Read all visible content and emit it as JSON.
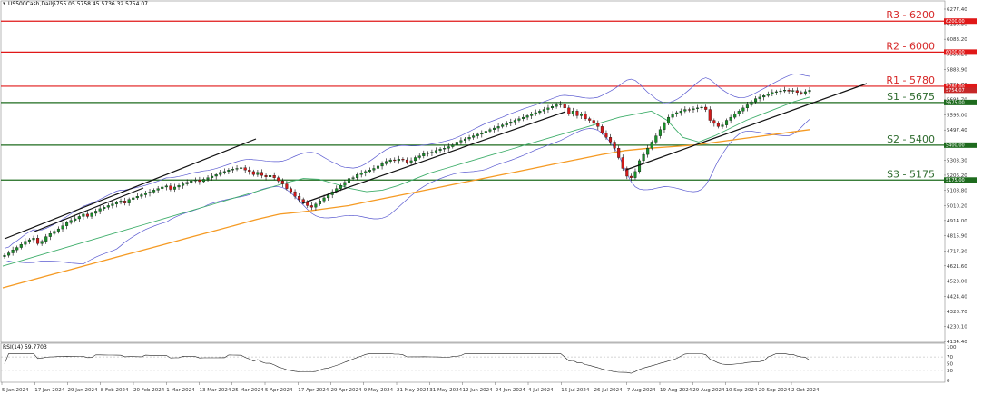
{
  "header": {
    "symbol_label": "US500Cash,Daily",
    "ohlc": "5755.05 5758.45 5736.32 5754.07"
  },
  "rsi_label": "RSI(14) 59.7703",
  "colors": {
    "resistance": "#e01818",
    "support": "#1e6b1e",
    "bullish_candle": "#1a8f2a",
    "bearish_candle": "#d11a1a",
    "ma_fast": "#3fae6b",
    "ma_slow": "#f59a23",
    "bollinger": "#5a5ad0",
    "trendline": "#111111",
    "rsi_line": "#222222"
  },
  "chart_data": [
    {
      "type": "candlestick",
      "title": "US500Cash,Daily",
      "x_labels": [
        "5 Jan 2024",
        "17 Jan 2024",
        "29 Jan 2024",
        "8 Feb 2024",
        "20 Feb 2024",
        "1 Mar 2024",
        "13 Mar 2024",
        "25 Mar 2024",
        "5 Apr 2024",
        "17 Apr 2024",
        "29 Apr 2024",
        "9 May 2024",
        "21 May 2024",
        "31 May 2024",
        "12 Jun 2024",
        "24 Jun 2024",
        "4 Jul 2024",
        "16 Jul 2024",
        "26 Jul 2024",
        "7 Aug 2024",
        "19 Aug 2024",
        "29 Aug 2024",
        "10 Sep 2024",
        "20 Sep 2024",
        "2 Oct 2024"
      ],
      "y_ticks": [
        "6277.40",
        "6180.80",
        "6083.20",
        "5986.20",
        "5888.90",
        "5791.70",
        "5694.70",
        "5596.00",
        "5497.40",
        "5400.00",
        "5303.30",
        "5206.20",
        "5108.80",
        "5010.20",
        "4914.00",
        "4815.90",
        "4717.30",
        "4621.60",
        "4523.00",
        "4424.40",
        "4328.70",
        "4230.10",
        "4134.40"
      ],
      "ylim": [
        4134.4,
        6277.4
      ],
      "levels": [
        {
          "label": "R3 - 6200",
          "value": 6200,
          "type": "resistance",
          "tag": "6200.00"
        },
        {
          "label": "R2 - 6000",
          "value": 6000,
          "type": "resistance",
          "tag": "6000.00"
        },
        {
          "label": "R1 - 5780",
          "value": 5780,
          "type": "resistance",
          "tag": "5780.00"
        },
        {
          "label": "S1 - 5675",
          "value": 5675,
          "type": "support",
          "tag": "5675.00"
        },
        {
          "label": "S2 - 5400",
          "value": 5400,
          "type": "support",
          "tag": "5400.00"
        },
        {
          "label": "S3 - 5175",
          "value": 5175,
          "type": "support",
          "tag": "5175.00"
        }
      ],
      "current_price": {
        "value": 5754.07,
        "tag": "5754.07"
      },
      "closes": [
        4690,
        4705,
        4725,
        4740,
        4760,
        4780,
        4790,
        4800,
        4765,
        4780,
        4810,
        4830,
        4845,
        4860,
        4880,
        4900,
        4915,
        4925,
        4940,
        4955,
        4940,
        4960,
        4975,
        4990,
        5000,
        5010,
        5020,
        5030,
        5040,
        5026,
        5050,
        5060,
        5070,
        5080,
        5090,
        5098,
        5110,
        5120,
        5130,
        5137,
        5115,
        5130,
        5140,
        5150,
        5160,
        5170,
        5175,
        5165,
        5180,
        5190,
        5200,
        5210,
        5225,
        5230,
        5240,
        5245,
        5250,
        5254,
        5240,
        5230,
        5210,
        5225,
        5205,
        5195,
        5205,
        5190,
        5170,
        5150,
        5120,
        5100,
        5070,
        5050,
        5030,
        5010,
        5000,
        5020,
        5040,
        5060,
        5080,
        5100,
        5120,
        5140,
        5160,
        5185,
        5190,
        5210,
        5220,
        5230,
        5240,
        5250,
        5265,
        5280,
        5295,
        5305,
        5300,
        5310,
        5305,
        5290,
        5300,
        5320,
        5330,
        5345,
        5350,
        5355,
        5365,
        5375,
        5380,
        5390,
        5400,
        5420,
        5430,
        5440,
        5450,
        5460,
        5470,
        5480,
        5490,
        5500,
        5510,
        5520,
        5530,
        5540,
        5550,
        5560,
        5570,
        5580,
        5590,
        5600,
        5610,
        5620,
        5630,
        5640,
        5650,
        5660,
        5665,
        5640,
        5600,
        5620,
        5590,
        5600,
        5570,
        5560,
        5540,
        5520,
        5480,
        5450,
        5420,
        5380,
        5320,
        5250,
        5200,
        5190,
        5230,
        5300,
        5340,
        5380,
        5420,
        5460,
        5500,
        5540,
        5580,
        5600,
        5610,
        5620,
        5630,
        5628,
        5635,
        5640,
        5645,
        5630,
        5560,
        5540,
        5520,
        5530,
        5560,
        5580,
        5600,
        5620,
        5640,
        5660,
        5680,
        5700,
        5710,
        5720,
        5730,
        5740,
        5745,
        5750,
        5755,
        5748,
        5752,
        5740,
        5735,
        5745,
        5754
      ],
      "ma_fast": [
        4620,
        4650,
        4680,
        4710,
        4740,
        4770,
        4800,
        4830,
        4860,
        4890,
        4920,
        4950,
        4980,
        5010,
        5040,
        5070,
        5100,
        5130,
        5160,
        5185,
        5180,
        5150,
        5120,
        5100,
        5110,
        5140,
        5180,
        5220,
        5250,
        5280,
        5310,
        5340,
        5370,
        5400,
        5430,
        5460,
        5490,
        5520,
        5550,
        5580,
        5600,
        5620,
        5560,
        5450,
        5420,
        5460,
        5510,
        5560,
        5600,
        5640,
        5680,
        5710
      ],
      "ma_slow": [
        4480,
        4520,
        4560,
        4600,
        4640,
        4680,
        4720,
        4760,
        4800,
        4840,
        4880,
        4920,
        4955,
        4970,
        4990,
        5010,
        5040,
        5070,
        5100,
        5130,
        5160,
        5190,
        5220,
        5250,
        5280,
        5310,
        5340,
        5365,
        5380,
        5390,
        5400,
        5420,
        5440,
        5460,
        5480,
        5500
      ],
      "rsi": {
        "ylim": [
          0,
          100
        ],
        "ticks": [
          "100",
          "70",
          "50",
          "30",
          "0"
        ],
        "last": 59.7703
      }
    }
  ]
}
